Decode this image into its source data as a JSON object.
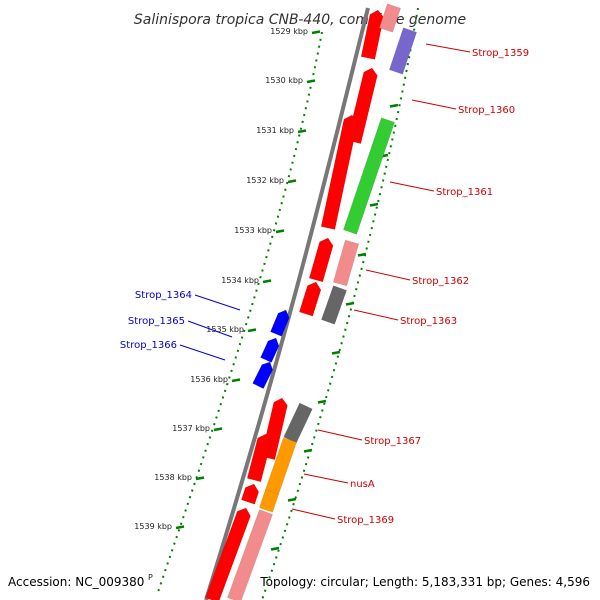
{
  "header": {
    "title": "Salinispora tropica CNB-440, complete genome"
  },
  "footer": {
    "accession": "Accession: NC_009380",
    "summary": "Topology: circular; Length: 5,183,331 bp; Genes: 4,596"
  },
  "colors": {
    "forward_label": "#cc0000",
    "reverse_label": "#0000cc",
    "cds": "#ff0000",
    "cds_faint": "#f28c8c",
    "rna": "#33cc33",
    "other": "#666666",
    "orange": "#ff9900",
    "lavender": "#7766cc",
    "blue": "#0000ff",
    "ruler": "#008000",
    "backbone": "#777777"
  },
  "ruler": {
    "ticks": [
      "1529 kbp",
      "1530 kbp",
      "1531 kbp",
      "1532 kbp",
      "1533 kbp",
      "1534 kbp",
      "1535 kbp",
      "1536 kbp",
      "1537 kbp",
      "1538 kbp",
      "1539 kbp"
    ]
  },
  "genes": {
    "forward": [
      "Strop_1359",
      "Strop_1360",
      "Strop_1361",
      "Strop_1362",
      "Strop_1363",
      "Strop_1367",
      "nusA",
      "Strop_1369"
    ],
    "reverse": [
      "Strop_1364",
      "Strop_1365",
      "Strop_1366"
    ]
  }
}
